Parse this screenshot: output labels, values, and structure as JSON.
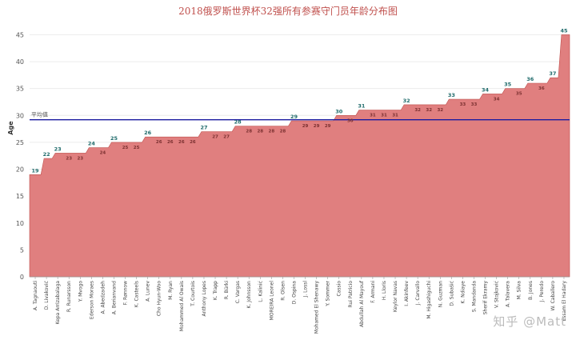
{
  "chart_data": {
    "type": "area",
    "title": "2018俄罗斯世界杯32强所有参赛守门员年龄分布图",
    "ylabel": "Age",
    "ylim": [
      0,
      47
    ],
    "yticks": [
      0,
      5,
      10,
      15,
      20,
      25,
      30,
      35,
      40,
      45
    ],
    "grid": true,
    "color": "#e07f7f",
    "line_color": "#c0504d",
    "label_color_peak": "#1f6b6b",
    "label_color_inner": "#7a3030",
    "reference_line": {
      "label": "平均值",
      "value": 29.2,
      "color": "#1a1aa0"
    },
    "categories": [
      "A. Tagnaouti",
      "D. Livaković",
      "Kepa Arrizabalaga",
      "R. Runarsson",
      "Y. Mvogo",
      "Ederson Moraes",
      "A. Abedzadeh",
      "A. Berianvand",
      "F. Rønnow",
      "K. Casteels",
      "A. Lunev",
      "Cho Hyun-Woo",
      "M. Ryan",
      "Mohammed Al Owais",
      "T. Courtois",
      "Anthony Lopes",
      "K. Trapp",
      "R. Bürki",
      "C. Vargas",
      "K. Johnsson",
      "L. Kalinić",
      "MOREIRA Leonel",
      "R. Olsen",
      "D. Ospina",
      "J. Lossl",
      "Mohamed El Shenawy",
      "Y. Sommer",
      "Cassio",
      "Rui Patricio",
      "Abdullah Al Mayouf",
      "F. Armani",
      "H. Lloris",
      "Keylor Navas",
      "I. Akinfeev",
      "J. Carvallo",
      "M. Higashiguchi",
      "N. Guzman",
      "D. Subašić",
      "K. Ndiaye",
      "S. Mandanda",
      "Sherif Ekramy",
      "V. Stojković",
      "A. Talavera",
      "M. Silva",
      "B. Jones",
      "J. Peredo",
      "W. Caballero",
      "Essam El Hadary"
    ],
    "values": [
      19,
      22,
      23,
      23,
      23,
      24,
      24,
      25,
      25,
      25,
      26,
      26,
      26,
      26,
      26,
      27,
      27,
      27,
      28,
      28,
      28,
      28,
      28,
      29,
      29,
      29,
      29,
      30,
      30,
      31,
      31,
      31,
      31,
      32,
      32,
      32,
      32,
      33,
      33,
      33,
      34,
      34,
      35,
      35,
      36,
      36,
      37,
      45
    ],
    "data_labels": [
      "19",
      "22",
      "23",
      "23",
      "23",
      "24",
      "24",
      "25",
      "25",
      "25",
      "26",
      "26",
      "26",
      "26",
      "26",
      "27",
      "27",
      "27",
      "28",
      "28",
      "28",
      "28",
      "28",
      "29",
      "29",
      "29",
      "29",
      "30",
      "30",
      "31",
      "31",
      "31",
      "31",
      "32",
      "32",
      "32",
      "32",
      "33",
      "33",
      "33",
      "34",
      "34",
      "35",
      "35",
      "36",
      "36",
      "37",
      "45"
    ]
  },
  "watermark": "知乎 @Matt"
}
